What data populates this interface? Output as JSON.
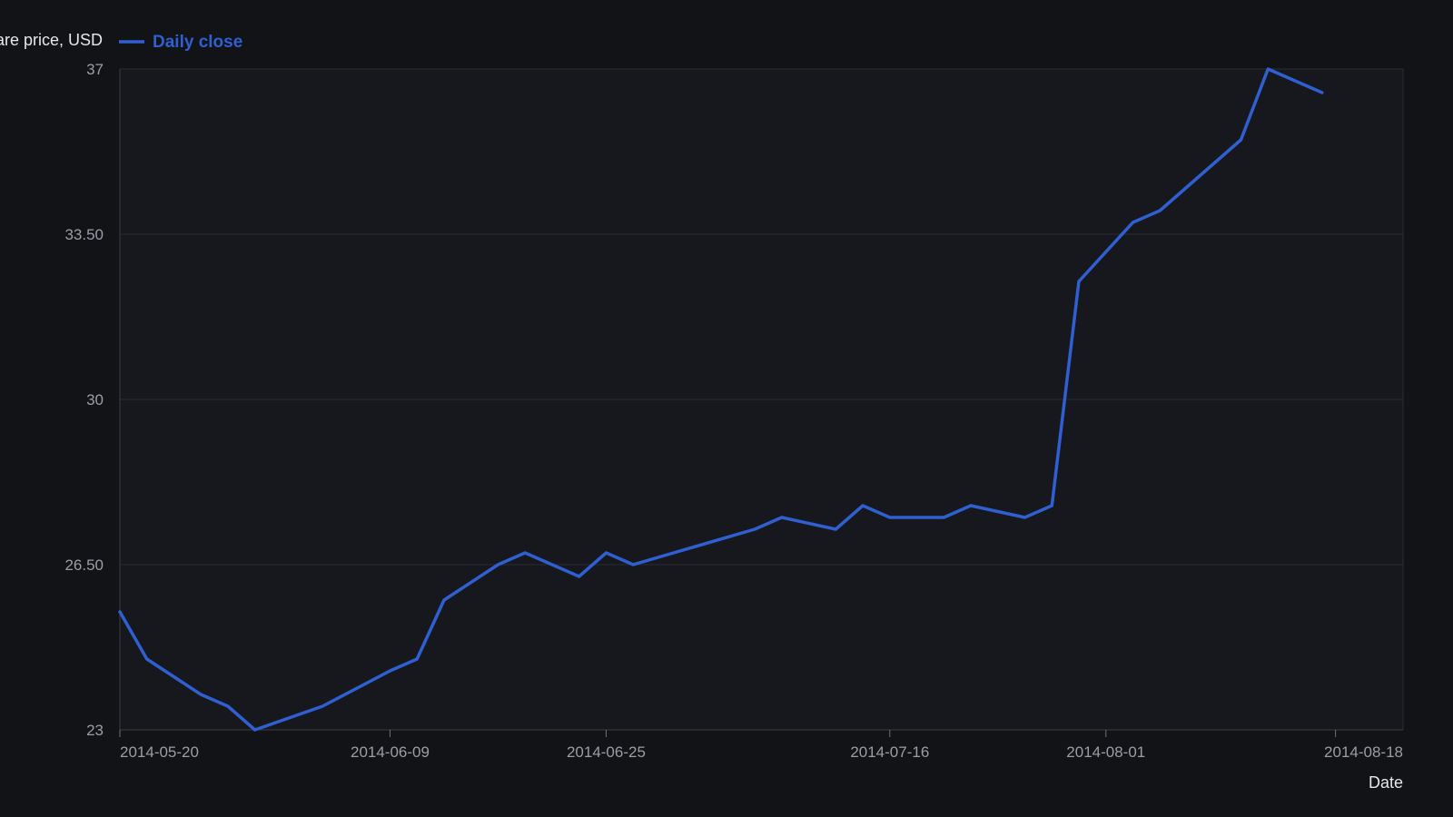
{
  "chart_data": {
    "type": "line",
    "ylabel": "Share price, USD",
    "xlabel": "Date",
    "ylim": [
      23,
      37
    ],
    "xlim": [
      "2014-05-20",
      "2014-08-23"
    ],
    "y_ticks": [
      {
        "value": 23,
        "label": "23"
      },
      {
        "value": 26.5,
        "label": "26.50"
      },
      {
        "value": 30,
        "label": "30"
      },
      {
        "value": 33.5,
        "label": "33.50"
      },
      {
        "value": 37,
        "label": "37"
      }
    ],
    "x_ticks": [
      "2014-05-20",
      "2014-06-09",
      "2014-06-25",
      "2014-07-16",
      "2014-08-01",
      "2014-08-18"
    ],
    "grid": true,
    "legend_position": "top-left",
    "series": [
      {
        "name": "Daily close",
        "color": "#2f5fd0",
        "points": [
          {
            "x": "2014-05-20",
            "y": 25.5
          },
          {
            "x": "2014-05-22",
            "y": 24.5
          },
          {
            "x": "2014-05-26",
            "y": 23.75
          },
          {
            "x": "2014-05-28",
            "y": 23.5
          },
          {
            "x": "2014-05-30",
            "y": 23.0
          },
          {
            "x": "2014-06-04",
            "y": 23.5
          },
          {
            "x": "2014-06-09",
            "y": 24.25
          },
          {
            "x": "2014-06-11",
            "y": 24.5
          },
          {
            "x": "2014-06-13",
            "y": 25.75
          },
          {
            "x": "2014-06-17",
            "y": 26.5
          },
          {
            "x": "2014-06-19",
            "y": 26.75
          },
          {
            "x": "2014-06-23",
            "y": 26.25
          },
          {
            "x": "2014-06-25",
            "y": 26.75
          },
          {
            "x": "2014-06-27",
            "y": 26.5
          },
          {
            "x": "2014-07-06",
            "y": 27.25
          },
          {
            "x": "2014-07-08",
            "y": 27.5
          },
          {
            "x": "2014-07-12",
            "y": 27.25
          },
          {
            "x": "2014-07-14",
            "y": 27.75
          },
          {
            "x": "2014-07-16",
            "y": 27.5
          },
          {
            "x": "2014-07-20",
            "y": 27.5
          },
          {
            "x": "2014-07-22",
            "y": 27.75
          },
          {
            "x": "2014-07-26",
            "y": 27.5
          },
          {
            "x": "2014-07-28",
            "y": 27.75
          },
          {
            "x": "2014-07-30",
            "y": 32.5
          },
          {
            "x": "2014-08-03",
            "y": 33.75
          },
          {
            "x": "2014-08-05",
            "y": 34.0
          },
          {
            "x": "2014-08-11",
            "y": 35.5
          },
          {
            "x": "2014-08-13",
            "y": 37.0
          },
          {
            "x": "2014-08-17",
            "y": 36.5
          }
        ]
      }
    ]
  }
}
